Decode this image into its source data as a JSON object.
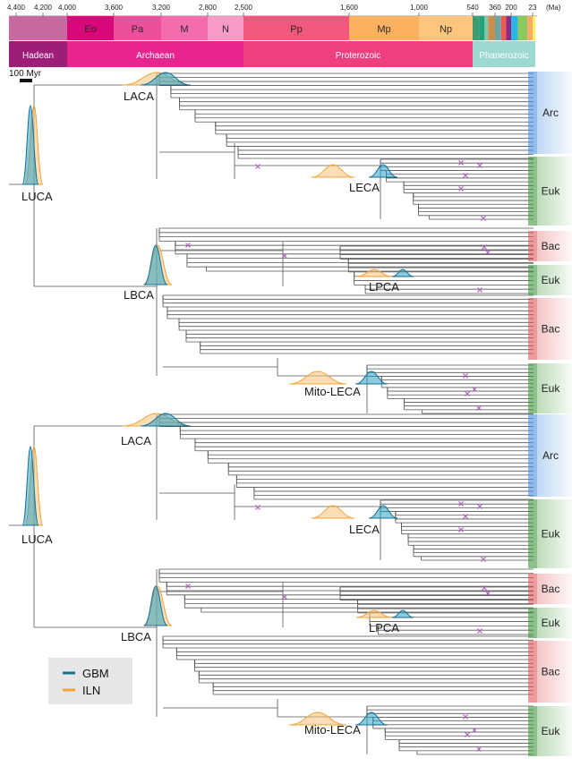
{
  "timescale": {
    "unit": "(Ma)",
    "ticks": [
      {
        "label": "4,400",
        "ma": 4400
      },
      {
        "label": "4,200",
        "ma": 4200
      },
      {
        "label": "4,000",
        "ma": 4000
      },
      {
        "label": "3,600",
        "ma": 3600
      },
      {
        "label": "3,200",
        "ma": 3200
      },
      {
        "label": "2,800",
        "ma": 2800
      },
      {
        "label": "2,500",
        "ma": 2500
      },
      {
        "label": "1,600",
        "ma": 1600
      },
      {
        "label": "1,000",
        "ma": 1000
      },
      {
        "label": "540",
        "ma": 540
      },
      {
        "label": "360",
        "ma": 360
      },
      {
        "label": "200",
        "ma": 200
      },
      {
        "label": "23",
        "ma": 23
      }
    ],
    "eras": [
      {
        "label": "",
        "from": 4500,
        "to": 4000,
        "color": "#c6699f"
      },
      {
        "label": "Eo",
        "from": 4000,
        "to": 3600,
        "color": "#d8087b"
      },
      {
        "label": "Pa",
        "from": 3600,
        "to": 3200,
        "color": "#ec4f9c"
      },
      {
        "label": "M",
        "from": 3200,
        "to": 2800,
        "color": "#f26cae"
      },
      {
        "label": "N",
        "from": 2800,
        "to": 2500,
        "color": "#f79ac6"
      },
      {
        "label": "Pp",
        "from": 2500,
        "to": 1600,
        "color": "#f2577e"
      },
      {
        "label": "Mp",
        "from": 1600,
        "to": 1000,
        "color": "#fbb160"
      },
      {
        "label": "Np",
        "from": 1000,
        "to": 540,
        "color": "#fdc67c"
      },
      {
        "label": "",
        "from": 540,
        "to": 488,
        "color": "#3e9c70"
      },
      {
        "label": "",
        "from": 488,
        "to": 444,
        "color": "#21a27a"
      },
      {
        "label": "",
        "from": 444,
        "to": 416,
        "color": "#80c9a4"
      },
      {
        "label": "",
        "from": 416,
        "to": 360,
        "color": "#c88f4e"
      },
      {
        "label": "",
        "from": 360,
        "to": 300,
        "color": "#6aa6a6"
      },
      {
        "label": "",
        "from": 300,
        "to": 250,
        "color": "#ef5a4c"
      },
      {
        "label": "",
        "from": 250,
        "to": 200,
        "color": "#8a2b85"
      },
      {
        "label": "",
        "from": 200,
        "to": 145,
        "color": "#27b7e7"
      },
      {
        "label": "",
        "from": 145,
        "to": 66,
        "color": "#8cca5d"
      },
      {
        "label": "",
        "from": 66,
        "to": 23,
        "color": "#fbaa6b"
      },
      {
        "label": "",
        "from": 23,
        "to": 0,
        "color": "#fff25a"
      }
    ],
    "eons": [
      {
        "label": "Hadean",
        "from": 4500,
        "to": 4000,
        "color": "#9e1d77"
      },
      {
        "label": "Archaean",
        "from": 4000,
        "to": 2500,
        "color": "#e8258f"
      },
      {
        "label": "Proterozoic",
        "from": 2500,
        "to": 540,
        "color": "#ef3f7e"
      },
      {
        "label": "Phanerozoic",
        "from": 540,
        "to": 0,
        "color": "#9dd9d2"
      }
    ]
  },
  "scale_bar": {
    "label": "100 Myr"
  },
  "nodes": {
    "top": {
      "laca": "LACA",
      "luca": "LUCA",
      "leca": "LECA",
      "lbca": "LBCA",
      "lpca": "LPCA",
      "mito_leca": "Mito-LECA"
    },
    "bottom": {
      "laca": "LACA",
      "luca": "LUCA",
      "leca": "LECA",
      "lbca": "LBCA",
      "lpca": "LPCA",
      "mito_leca": "Mito-LECA"
    }
  },
  "clades": {
    "top": [
      {
        "label": "Arc",
        "color": "#4a90e2"
      },
      {
        "label": "Euk",
        "color": "#3f9a3a"
      },
      {
        "label": "Bac",
        "color": "#e05a5a"
      },
      {
        "label": "Euk",
        "color": "#3f9a3a"
      },
      {
        "label": "Bac",
        "color": "#e05a5a"
      },
      {
        "label": "Euk",
        "color": "#3f9a3a"
      }
    ],
    "bottom": [
      {
        "label": "Arc",
        "color": "#4a90e2"
      },
      {
        "label": "Euk",
        "color": "#3f9a3a"
      },
      {
        "label": "Bac",
        "color": "#e05a5a"
      },
      {
        "label": "Euk",
        "color": "#3f9a3a"
      },
      {
        "label": "Bac",
        "color": "#e05a5a"
      },
      {
        "label": "Euk",
        "color": "#3f9a3a"
      }
    ]
  },
  "legend": {
    "items": [
      {
        "label": "GBM",
        "color": "#1a6f93"
      },
      {
        "label": "ILN",
        "color": "#f2a33a"
      }
    ]
  },
  "colors": {
    "gbm_fill": "#2aa3c7",
    "iln_fill": "#f7c27a",
    "tree_line": "#555555",
    "calibration": "#b05fc0"
  }
}
